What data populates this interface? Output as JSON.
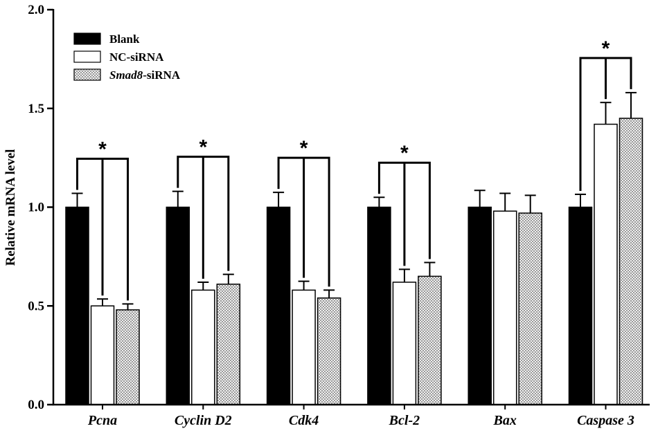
{
  "chart_data": {
    "type": "bar",
    "title": "",
    "xlabel": "",
    "ylabel": "Relative mRNA level",
    "ylim": [
      0,
      2.0
    ],
    "yticks": [
      "0.0",
      "0.5",
      "1.0",
      "1.5",
      "2.0"
    ],
    "categories": [
      "Pcna",
      "Cyclin D2",
      "Cdk4",
      "Bcl-2",
      "Bax",
      "Caspase 3"
    ],
    "series": [
      {
        "name": "Blank",
        "name_italic": "",
        "name_suffix": "Blank",
        "fill": "black",
        "values": [
          1.0,
          1.0,
          1.0,
          1.0,
          1.0,
          1.0
        ],
        "errors": [
          0.07,
          0.08,
          0.075,
          0.05,
          0.085,
          0.065
        ]
      },
      {
        "name": "NC-siRNA",
        "name_italic": "",
        "name_suffix": "NC-siRNA",
        "fill": "white",
        "values": [
          0.5,
          0.58,
          0.58,
          0.62,
          0.98,
          1.42
        ],
        "errors": [
          0.035,
          0.04,
          0.045,
          0.065,
          0.09,
          0.11
        ]
      },
      {
        "name": "Smad8-siRNA",
        "name_italic": "Smad8",
        "name_suffix": "-siRNA",
        "fill": "checker",
        "values": [
          0.48,
          0.61,
          0.54,
          0.65,
          0.97,
          1.45
        ],
        "errors": [
          0.03,
          0.05,
          0.04,
          0.07,
          0.09,
          0.13
        ]
      }
    ],
    "significance": [
      {
        "category": "Pcna",
        "label": "*"
      },
      {
        "category": "Cyclin D2",
        "label": "*"
      },
      {
        "category": "Cdk4",
        "label": "*"
      },
      {
        "category": "Bcl-2",
        "label": "*"
      },
      {
        "category": "Caspase 3",
        "label": "*"
      }
    ],
    "legend_position": "top-left",
    "grid": false
  }
}
